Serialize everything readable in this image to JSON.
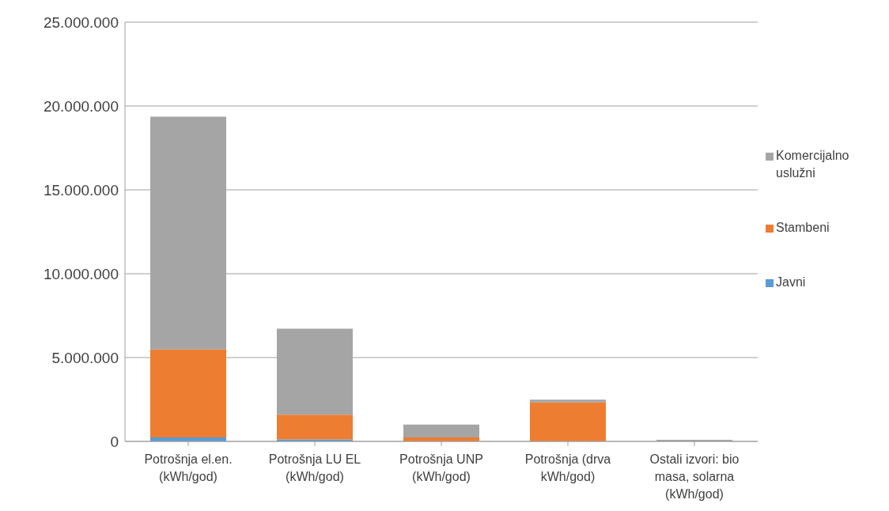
{
  "chart_data": {
    "type": "bar",
    "stacked": true,
    "categories": [
      "Potrošnja el.en. (kWh/god)",
      "Potrošnja LU EL (kWh/god)",
      "Potrošnja UNP (kWh/god)",
      "Potrošnja (drva kWh/god)",
      "Ostali izvori: bio masa, solarna (kWh/god)"
    ],
    "series": [
      {
        "name": "Javni",
        "color": "#5b9bd5",
        "values": [
          240000,
          120000,
          null,
          null,
          null
        ]
      },
      {
        "name": "Stambeni",
        "color": "#ed7d31",
        "values": [
          5240000,
          1470000,
          240000,
          2320000,
          null
        ]
      },
      {
        "name": "Komercijalno uslužni",
        "color": "#a5a5a5",
        "values": [
          13880000,
          5130000,
          760000,
          170000,
          100000
        ]
      }
    ],
    "ylim": [
      0,
      25000000
    ],
    "yticks": [
      0,
      {
        "value": 5000000,
        "label": "5.000.000"
      },
      {
        "value": 10000000,
        "label": "10.000.000"
      },
      {
        "value": 15000000,
        "label": "15.000.000"
      },
      {
        "value": 20000000,
        "label": "20.000.000"
      },
      {
        "value": 25000000,
        "label": "25.000.000"
      }
    ],
    "grid": "y",
    "legend": "right"
  }
}
